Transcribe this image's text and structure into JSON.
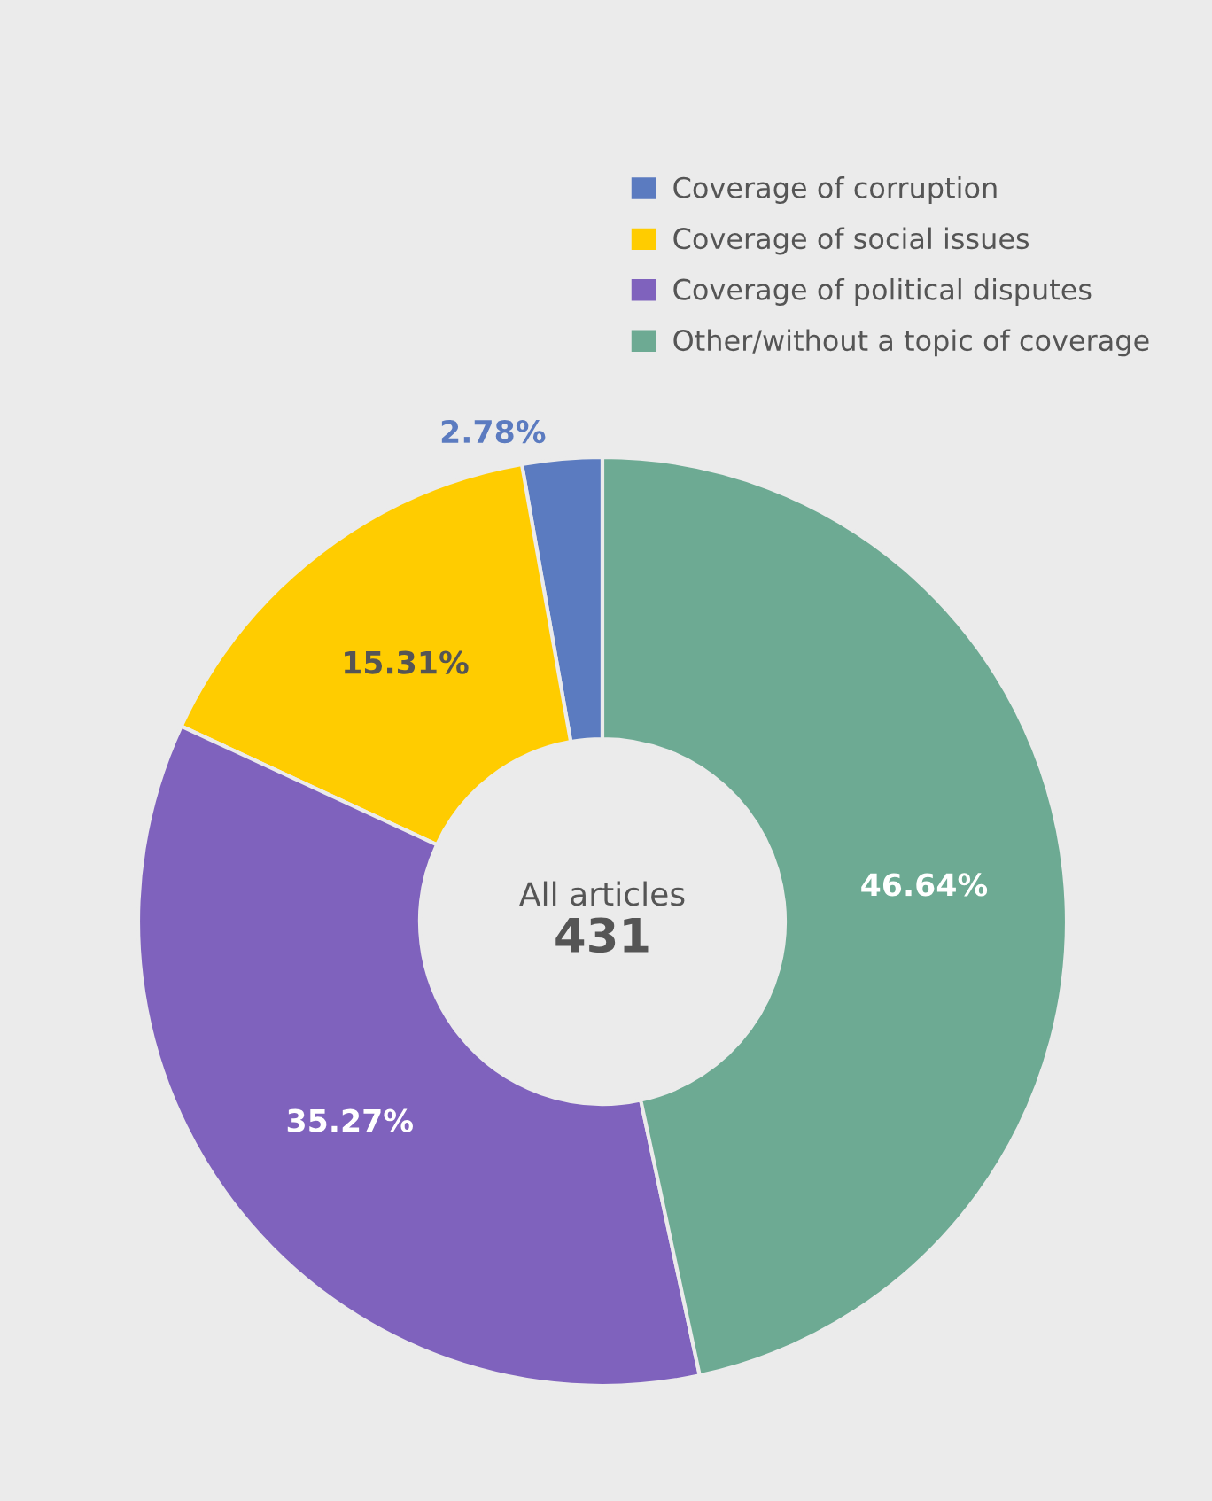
{
  "chart_data": {
    "type": "donut",
    "categories": [
      "Coverage of corruption",
      "Coverage of social issues",
      "Coverage of political disputes",
      "Other/without a topic of coverage"
    ],
    "values": [
      2.78,
      15.31,
      35.27,
      46.64
    ],
    "colors": [
      "#5b7bc0",
      "#ffcc00",
      "#7f62bd",
      "#6daa93"
    ],
    "value_labels": [
      "2.78%",
      "15.31%",
      "35.27%",
      "46.64%"
    ],
    "annotations": [
      "All articles",
      "431"
    ],
    "legend": "top right"
  }
}
